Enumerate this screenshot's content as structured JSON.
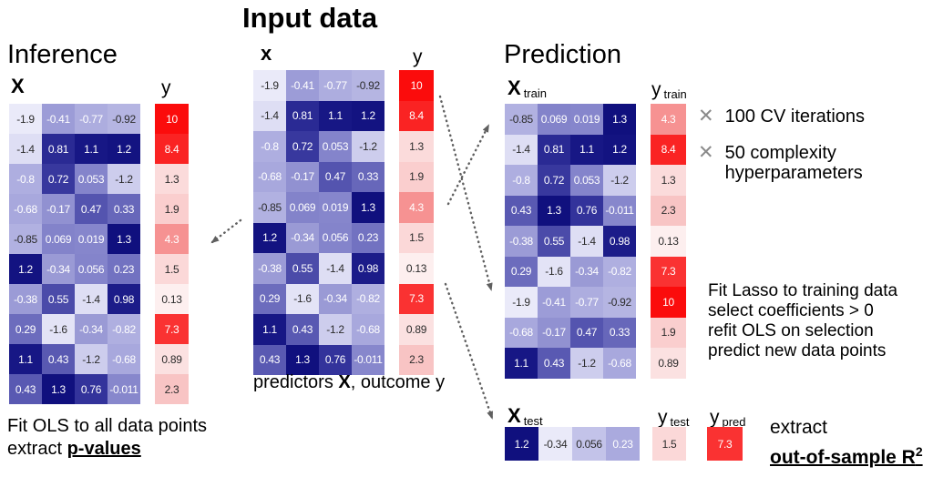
{
  "headings": {
    "inference": "Inference",
    "input": "Input data",
    "prediction": "Prediction"
  },
  "labels": {
    "inference_x": "X",
    "inference_y": "y",
    "input_x": "x",
    "input_y": "y",
    "x_train_base": "X",
    "x_train_sub": "train",
    "y_train_base": "y",
    "y_train_sub": "train",
    "x_test_base": "X",
    "x_test_sub": "test",
    "y_test_base": "y",
    "y_test_sub": "test",
    "y_pred_base": "y",
    "y_pred_sub": "pred"
  },
  "matrices": {
    "X": [
      [
        -1.9,
        -0.41,
        -0.77,
        -0.92
      ],
      [
        -1.4,
        0.81,
        1.1,
        1.2
      ],
      [
        -0.8,
        0.72,
        0.053,
        -1.2
      ],
      [
        -0.68,
        -0.17,
        0.47,
        0.33
      ],
      [
        -0.85,
        0.069,
        0.019,
        1.3
      ],
      [
        1.2,
        -0.34,
        0.056,
        0.23
      ],
      [
        -0.38,
        0.55,
        -1.4,
        0.98
      ],
      [
        0.29,
        -1.6,
        -0.34,
        -0.82
      ],
      [
        1.1,
        0.43,
        -1.2,
        -0.68
      ],
      [
        0.43,
        1.3,
        0.76,
        -0.011
      ]
    ],
    "y": [
      10,
      8.4,
      1.3,
      1.9,
      4.3,
      1.5,
      0.13,
      7.3,
      0.89,
      2.3
    ],
    "train_X": [
      [
        -0.85,
        0.069,
        0.019,
        1.3
      ],
      [
        -1.4,
        0.81,
        1.1,
        1.2
      ],
      [
        -0.8,
        0.72,
        0.053,
        -1.2
      ],
      [
        0.43,
        1.3,
        0.76,
        -0.011
      ],
      [
        -0.38,
        0.55,
        -1.4,
        0.98
      ],
      [
        0.29,
        -1.6,
        -0.34,
        -0.82
      ],
      [
        -1.9,
        -0.41,
        -0.77,
        -0.92
      ],
      [
        -0.68,
        -0.17,
        0.47,
        0.33
      ],
      [
        1.1,
        0.43,
        -1.2,
        -0.68
      ]
    ],
    "train_y": [
      4.3,
      8.4,
      1.3,
      2.3,
      0.13,
      7.3,
      10,
      1.9,
      0.89
    ],
    "test_X": [
      1.2,
      -0.34,
      0.056,
      0.23
    ],
    "test_y": 1.5,
    "pred_y": 7.3
  },
  "captions": {
    "inference_line1": "Fit OLS to all data points",
    "inference_line2_prefix": "extract ",
    "inference_line2_emph": "p-values",
    "input_prefix": "predictors ",
    "input_bold": "X",
    "input_suffix": ", outcome y",
    "extract_line1": "extract",
    "extract_line2": "out-of-sample R",
    "extract_sup": "2"
  },
  "annotations": {
    "cross": "✕",
    "cv": "100 CV iterations",
    "complexity_line1": "50 complexity",
    "complexity_line2": "hyperparameters",
    "lasso_line1": "Fit Lasso to training data",
    "lasso_line2": "select coefficients > 0",
    "lasso_line3": "refit OLS on selection",
    "lasso_line4": "predict new data points"
  },
  "colors": {
    "arrow": "#5f5f5f",
    "cross": "#8a8a8a",
    "blue_dark": "#10107e",
    "blue_light": "#eaeaf9",
    "red_bright": "#fb0c0c",
    "red_pale": "#fdf1f1",
    "cell_text_dark": "#2b2b2b",
    "cell_text_light": "#ffffff"
  }
}
